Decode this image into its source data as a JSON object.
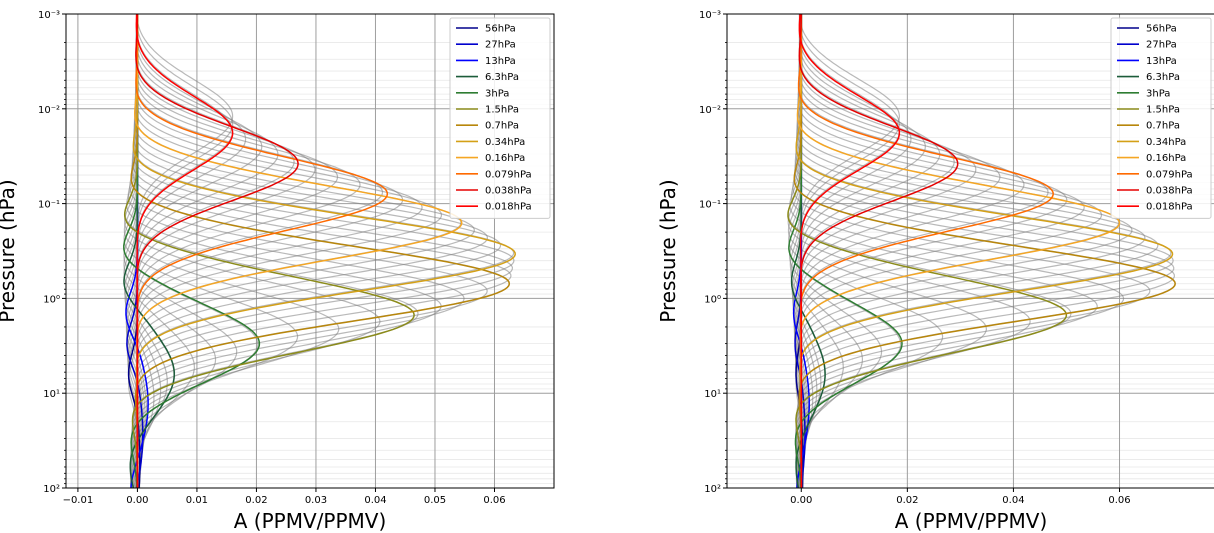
{
  "chart_data": [
    {
      "type": "line",
      "xlabel": "A (PPMV/PPMV)",
      "ylabel": "Pressure (hPa)",
      "xlim": [
        -0.012,
        0.07
      ],
      "ylim": [
        100,
        0.001
      ],
      "yscale": "log",
      "xticks": [
        -0.01,
        0.0,
        0.01,
        0.02,
        0.03,
        0.04,
        0.05,
        0.06
      ],
      "xtick_labels": [
        "−0.01",
        "0.00",
        "0.01",
        "0.02",
        "0.03",
        "0.04",
        "0.05",
        "0.06"
      ],
      "yticks": [
        0.001,
        0.01,
        0.1,
        1,
        10,
        100
      ],
      "ytick_labels": [
        "10⁻³",
        "10⁻²",
        "10⁻¹",
        "10⁰",
        "10¹",
        "10²"
      ],
      "grid": true,
      "legend_position": "top-right",
      "background_series": {
        "color": "#808080",
        "description_count": 48
      },
      "series": [
        {
          "name": "56hPa",
          "color": "#00008b",
          "peak_p": 56,
          "amp": 0.0004,
          "neg_amp": 0.0015
        },
        {
          "name": "27hPa",
          "color": "#0000cd",
          "peak_p": 27,
          "amp": 0.0009,
          "neg_amp": 0.0018
        },
        {
          "name": "13hPa",
          "color": "#0000ff",
          "peak_p": 13,
          "amp": 0.0018,
          "neg_amp": 0.002
        },
        {
          "name": "6.3hPa",
          "color": "#1c5c3a",
          "peak_p": 6.3,
          "amp": 0.0062,
          "neg_amp": 0.0025
        },
        {
          "name": "3hPa",
          "color": "#2e7d32",
          "peak_p": 3,
          "amp": 0.0205,
          "neg_amp": 0.003
        },
        {
          "name": "1.5hPa",
          "color": "#8b8b1a",
          "peak_p": 1.5,
          "amp": 0.0465,
          "neg_amp": 0.0035
        },
        {
          "name": "0.7hPa",
          "color": "#b8860b",
          "peak_p": 0.7,
          "amp": 0.0625,
          "neg_amp": 0.0025
        },
        {
          "name": "0.34hPa",
          "color": "#d4a017",
          "peak_p": 0.34,
          "amp": 0.0635,
          "neg_amp": 0.002
        },
        {
          "name": "0.16hPa",
          "color": "#f5a623",
          "peak_p": 0.16,
          "amp": 0.0545,
          "neg_amp": 0.0015
        },
        {
          "name": "0.079hPa",
          "color": "#ff6a00",
          "peak_p": 0.079,
          "amp": 0.042,
          "neg_amp": 0.001
        },
        {
          "name": "0.038hPa",
          "color": "#e60000",
          "peak_p": 0.038,
          "amp": 0.027,
          "neg_amp": 0.0008
        },
        {
          "name": "0.018hPa",
          "color": "#ff0000",
          "peak_p": 0.018,
          "amp": 0.016,
          "neg_amp": 0.0005
        }
      ]
    },
    {
      "type": "line",
      "xlabel": "A (PPMV/PPMV)",
      "ylabel": "Pressure (hPa)",
      "xlim": [
        -0.014,
        0.078
      ],
      "ylim": [
        100,
        0.001
      ],
      "yscale": "log",
      "xticks": [
        0.0,
        0.02,
        0.04,
        0.06
      ],
      "xtick_labels": [
        "0.00",
        "0.02",
        "0.04",
        "0.06"
      ],
      "yticks": [
        0.001,
        0.01,
        0.1,
        1,
        10,
        100
      ],
      "ytick_labels": [
        "10⁻³",
        "10⁻²",
        "10⁻¹",
        "10⁰",
        "10¹",
        "10²"
      ],
      "grid": true,
      "legend_position": "top-right",
      "background_series": {
        "color": "#808080",
        "description_count": 48
      },
      "series": [
        {
          "name": "56hPa",
          "color": "#00008b",
          "peak_p": 56,
          "amp": 0.0003,
          "neg_amp": 0.001
        },
        {
          "name": "27hPa",
          "color": "#0000cd",
          "peak_p": 27,
          "amp": 0.0007,
          "neg_amp": 0.0012
        },
        {
          "name": "13hPa",
          "color": "#0000ff",
          "peak_p": 13,
          "amp": 0.0015,
          "neg_amp": 0.0015
        },
        {
          "name": "6.3hPa",
          "color": "#1c5c3a",
          "peak_p": 6.3,
          "amp": 0.0045,
          "neg_amp": 0.002
        },
        {
          "name": "3hPa",
          "color": "#2e7d32",
          "peak_p": 3,
          "amp": 0.019,
          "neg_amp": 0.003
        },
        {
          "name": "1.5hPa",
          "color": "#8b8b1a",
          "peak_p": 1.5,
          "amp": 0.05,
          "neg_amp": 0.004
        },
        {
          "name": "0.7hPa",
          "color": "#b8860b",
          "peak_p": 0.7,
          "amp": 0.0705,
          "neg_amp": 0.003
        },
        {
          "name": "0.34hPa",
          "color": "#d4a017",
          "peak_p": 0.34,
          "amp": 0.07,
          "neg_amp": 0.0025
        },
        {
          "name": "0.16hPa",
          "color": "#f5a623",
          "peak_p": 0.16,
          "amp": 0.06,
          "neg_amp": 0.002
        },
        {
          "name": "0.079hPa",
          "color": "#ff6a00",
          "peak_p": 0.079,
          "amp": 0.0475,
          "neg_amp": 0.0015
        },
        {
          "name": "0.038hPa",
          "color": "#e60000",
          "peak_p": 0.038,
          "amp": 0.0295,
          "neg_amp": 0.001
        },
        {
          "name": "0.018hPa",
          "color": "#ff0000",
          "peak_p": 0.018,
          "amp": 0.0185,
          "neg_amp": 0.0008
        }
      ]
    }
  ]
}
